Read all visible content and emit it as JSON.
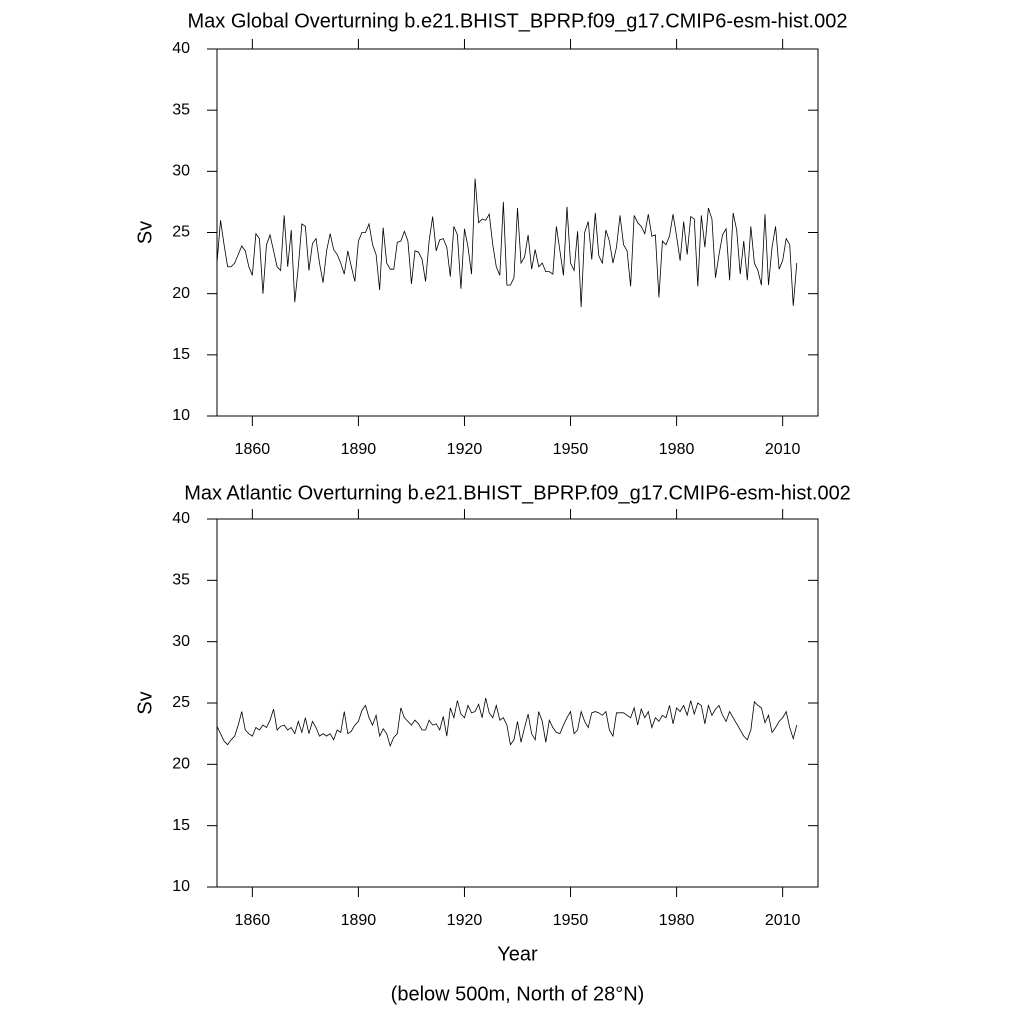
{
  "chart_data": [
    {
      "type": "line",
      "title": "Max Global Overturning b.e21.BHIST_BPRP.f09_g17.CMIP6-esm-hist.002",
      "ylabel": "Sv",
      "x": [
        1850,
        1851,
        1852,
        1853,
        1854,
        1855,
        1856,
        1857,
        1858,
        1859,
        1860,
        1861,
        1862,
        1863,
        1864,
        1865,
        1866,
        1867,
        1868,
        1869,
        1870,
        1871,
        1872,
        1873,
        1874,
        1875,
        1876,
        1877,
        1878,
        1879,
        1880,
        1881,
        1882,
        1883,
        1884,
        1885,
        1886,
        1887,
        1888,
        1889,
        1890,
        1891,
        1892,
        1893,
        1894,
        1895,
        1896,
        1897,
        1898,
        1899,
        1900,
        1901,
        1902,
        1903,
        1904,
        1905,
        1906,
        1907,
        1908,
        1909,
        1910,
        1911,
        1912,
        1913,
        1914,
        1915,
        1916,
        1917,
        1918,
        1919,
        1920,
        1921,
        1922,
        1923,
        1924,
        1925,
        1926,
        1927,
        1928,
        1929,
        1930,
        1931,
        1932,
        1933,
        1934,
        1935,
        1936,
        1937,
        1938,
        1939,
        1940,
        1941,
        1942,
        1943,
        1944,
        1945,
        1946,
        1947,
        1948,
        1949,
        1950,
        1951,
        1952,
        1953,
        1954,
        1955,
        1956,
        1957,
        1958,
        1959,
        1960,
        1961,
        1962,
        1963,
        1964,
        1965,
        1966,
        1967,
        1968,
        1969,
        1970,
        1971,
        1972,
        1973,
        1974,
        1975,
        1976,
        1977,
        1978,
        1979,
        1980,
        1981,
        1982,
        1983,
        1984,
        1985,
        1986,
        1987,
        1988,
        1989,
        1990,
        1991,
        1992,
        1993,
        1994,
        1995,
        1996,
        1997,
        1998,
        1999,
        2000,
        2001,
        2002,
        2003,
        2004,
        2005,
        2006,
        2007,
        2008,
        2009,
        2010,
        2011,
        2012,
        2013,
        2014
      ],
      "series": [
        {
          "color": "#000000",
          "values": [
            22.5,
            26.0,
            24.0,
            22.2,
            22.2,
            22.5,
            23.2,
            23.9,
            23.5,
            22.2,
            21.5,
            24.9,
            24.5,
            20.0,
            24.0,
            24.8,
            23.5,
            22.2,
            21.9,
            26.4,
            22.2,
            25.2,
            19.3,
            22.2,
            25.7,
            25.5,
            21.9,
            24.1,
            24.5,
            22.5,
            20.9,
            23.5,
            24.9,
            23.6,
            23.2,
            22.5,
            21.6,
            23.5,
            22.2,
            21.0,
            24.3,
            25.0,
            25.0,
            25.7,
            24.0,
            23.2,
            20.3,
            25.4,
            22.5,
            22.0,
            22.0,
            24.2,
            24.3,
            25.1,
            24.3,
            20.8,
            23.5,
            23.4,
            22.8,
            21.0,
            24.3,
            26.3,
            23.5,
            24.4,
            24.5,
            23.8,
            21.4,
            25.5,
            24.8,
            20.4,
            25.3,
            23.8,
            21.6,
            29.4,
            25.8,
            26.1,
            26.0,
            26.5,
            24.0,
            22.2,
            21.5,
            27.5,
            20.7,
            20.7,
            21.3,
            27.0,
            22.5,
            23.0,
            24.8,
            22.0,
            23.6,
            22.2,
            22.5,
            21.8,
            21.8,
            21.6,
            25.5,
            23.5,
            21.5,
            27.1,
            22.5,
            21.9,
            25.1,
            18.9,
            25.0,
            25.9,
            22.8,
            26.6,
            23.1,
            22.5,
            25.2,
            24.3,
            22.5,
            23.8,
            26.4,
            24.0,
            23.5,
            20.6,
            26.4,
            25.8,
            25.5,
            24.9,
            26.5,
            24.7,
            24.8,
            19.7,
            24.3,
            24.0,
            24.7,
            26.5,
            24.7,
            22.7,
            25.9,
            23.2,
            26.3,
            26.1,
            20.6,
            26.4,
            23.8,
            27.0,
            26.1,
            21.3,
            23.2,
            24.8,
            25.3,
            21.1,
            26.6,
            25.2,
            21.6,
            24.3,
            21.1,
            25.5,
            22.5,
            21.9,
            20.7,
            26.5,
            20.7,
            23.8,
            25.5,
            22.0,
            22.7,
            24.5,
            24.0,
            19.0,
            22.5
          ]
        }
      ],
      "xlim": [
        1850,
        2020
      ],
      "ylim": [
        10,
        40
      ],
      "xticks": [
        1860,
        1890,
        1920,
        1950,
        1980,
        2010
      ],
      "yticks": [
        10,
        15,
        20,
        25,
        30,
        35,
        40
      ]
    },
    {
      "type": "line",
      "title": "Max Atlantic Overturning b.e21.BHIST_BPRP.f09_g17.CMIP6-esm-hist.002",
      "ylabel": "Sv",
      "xlabel": "Year",
      "caption": "(below 500m, North of 28°N)",
      "x": [
        1850,
        1851,
        1852,
        1853,
        1854,
        1855,
        1856,
        1857,
        1858,
        1859,
        1860,
        1861,
        1862,
        1863,
        1864,
        1865,
        1866,
        1867,
        1868,
        1869,
        1870,
        1871,
        1872,
        1873,
        1874,
        1875,
        1876,
        1877,
        1878,
        1879,
        1880,
        1881,
        1882,
        1883,
        1884,
        1885,
        1886,
        1887,
        1888,
        1889,
        1890,
        1891,
        1892,
        1893,
        1894,
        1895,
        1896,
        1897,
        1898,
        1899,
        1900,
        1901,
        1902,
        1903,
        1904,
        1905,
        1906,
        1907,
        1908,
        1909,
        1910,
        1911,
        1912,
        1913,
        1914,
        1915,
        1916,
        1917,
        1918,
        1919,
        1920,
        1921,
        1922,
        1923,
        1924,
        1925,
        1926,
        1927,
        1928,
        1929,
        1930,
        1931,
        1932,
        1933,
        1934,
        1935,
        1936,
        1937,
        1938,
        1939,
        1940,
        1941,
        1942,
        1943,
        1944,
        1945,
        1946,
        1947,
        1948,
        1949,
        1950,
        1951,
        1952,
        1953,
        1954,
        1955,
        1956,
        1957,
        1958,
        1959,
        1960,
        1961,
        1962,
        1963,
        1964,
        1965,
        1966,
        1967,
        1968,
        1969,
        1970,
        1971,
        1972,
        1973,
        1974,
        1975,
        1976,
        1977,
        1978,
        1979,
        1980,
        1981,
        1982,
        1983,
        1984,
        1985,
        1986,
        1987,
        1988,
        1989,
        1990,
        1991,
        1992,
        1993,
        1994,
        1995,
        1996,
        1997,
        1998,
        1999,
        2000,
        2001,
        2002,
        2003,
        2004,
        2005,
        2006,
        2007,
        2008,
        2009,
        2010,
        2011,
        2012,
        2013,
        2014
      ],
      "series": [
        {
          "color": "#000000",
          "values": [
            23.1,
            22.5,
            21.9,
            21.6,
            22.0,
            22.3,
            23.2,
            24.3,
            22.8,
            22.5,
            22.3,
            23.0,
            22.8,
            23.2,
            23.0,
            23.6,
            24.5,
            22.8,
            23.1,
            23.2,
            22.8,
            23.0,
            22.5,
            23.5,
            22.6,
            23.8,
            22.5,
            23.5,
            23.0,
            22.3,
            22.5,
            22.3,
            22.5,
            22.0,
            22.8,
            22.6,
            24.3,
            22.5,
            22.7,
            23.2,
            23.5,
            24.4,
            24.8,
            23.8,
            23.2,
            24.0,
            22.3,
            22.9,
            22.5,
            21.5,
            22.2,
            22.5,
            24.6,
            23.8,
            23.5,
            23.2,
            23.6,
            23.3,
            22.8,
            22.8,
            23.6,
            23.2,
            23.3,
            22.8,
            23.9,
            22.3,
            24.6,
            23.8,
            25.2,
            24.1,
            23.8,
            24.8,
            24.2,
            24.3,
            24.9,
            23.8,
            25.4,
            24.2,
            23.8,
            24.8,
            23.6,
            23.8,
            23.2,
            21.6,
            22.0,
            23.5,
            21.8,
            23.0,
            24.1,
            22.5,
            22.0,
            24.3,
            23.5,
            21.8,
            23.6,
            23.0,
            22.6,
            22.5,
            23.2,
            23.8,
            24.3,
            22.5,
            22.8,
            24.3,
            23.5,
            23.0,
            24.2,
            24.3,
            24.2,
            24.0,
            24.3,
            22.8,
            22.3,
            24.2,
            24.2,
            24.2,
            24.0,
            23.8,
            24.6,
            23.2,
            24.5,
            23.8,
            24.3,
            23.0,
            23.8,
            23.5,
            24.0,
            23.8,
            24.8,
            23.3,
            24.6,
            24.3,
            24.8,
            24.0,
            25.2,
            24.1,
            25.0,
            24.8,
            23.3,
            24.8,
            24.0,
            24.5,
            24.8,
            24.0,
            23.5,
            24.3,
            23.8,
            23.3,
            22.8,
            22.3,
            22.0,
            22.8,
            25.1,
            24.8,
            24.6,
            23.4,
            24.0,
            22.6,
            23.0,
            23.5,
            23.8,
            24.3,
            23.0,
            22.1,
            23.2
          ]
        }
      ],
      "xlim": [
        1850,
        2020
      ],
      "ylim": [
        10,
        40
      ],
      "xticks": [
        1860,
        1890,
        1920,
        1950,
        1980,
        2010
      ],
      "yticks": [
        10,
        15,
        20,
        25,
        30,
        35,
        40
      ]
    }
  ]
}
